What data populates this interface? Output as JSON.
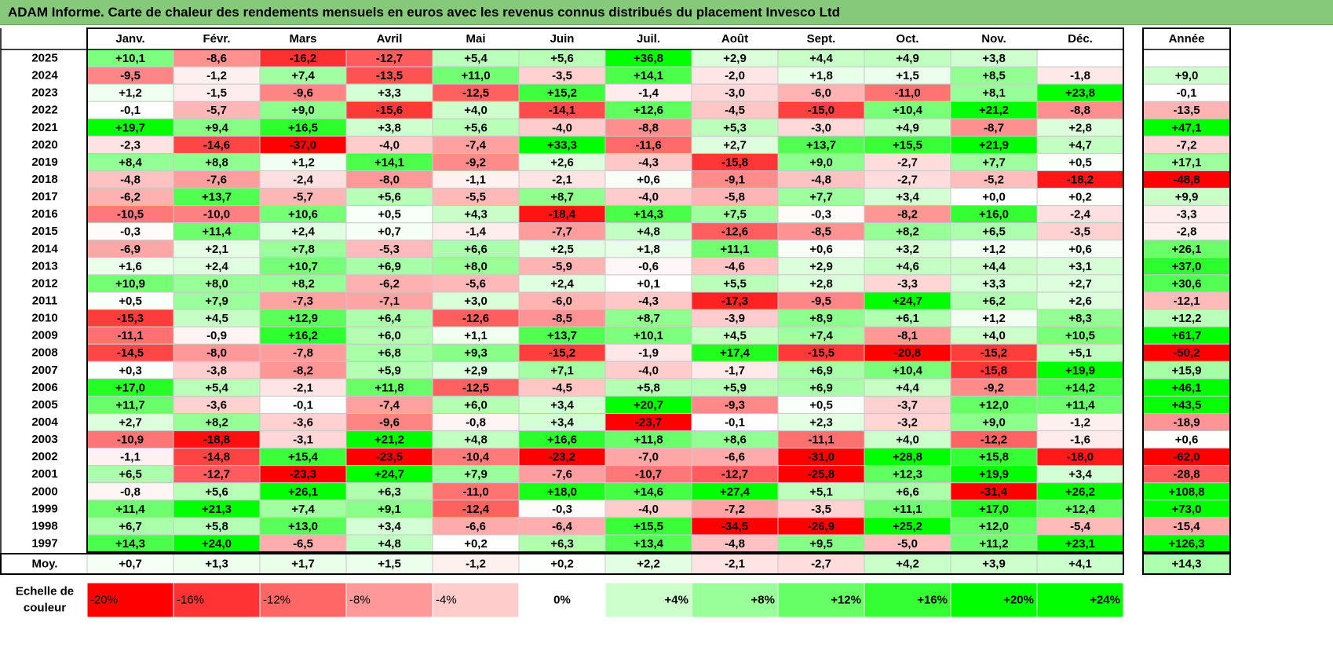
{
  "title": "ADAM Informe. Carte de chaleur des rendements mensuels en euros avec les revenus connus distribués du placement Invesco Ltd",
  "chart_data": {
    "type": "heatmap",
    "months": [
      "Janv.",
      "Févr.",
      "Mars",
      "Avril",
      "Mai",
      "Juin",
      "Juil.",
      "Août",
      "Sept.",
      "Oct.",
      "Nov.",
      "Déc."
    ],
    "year_header": "Année",
    "average_label": "Moy.",
    "rows": [
      {
        "year": "2025",
        "values": [
          "+10,1",
          "-8,6",
          "-16,2",
          "-12,7",
          "+5,4",
          "+5,6",
          "+36,8",
          "+2,9",
          "+4,4",
          "+4,9",
          "+3,8",
          ""
        ],
        "annual": ""
      },
      {
        "year": "2024",
        "values": [
          "-9,5",
          "-1,2",
          "+7,4",
          "-13,5",
          "+11,0",
          "-3,5",
          "+14,1",
          "-2,0",
          "+1,8",
          "+1,5",
          "+8,5",
          "-1,8"
        ],
        "annual": "+9,0"
      },
      {
        "year": "2023",
        "values": [
          "+1,2",
          "-1,5",
          "-9,6",
          "+3,3",
          "-12,5",
          "+15,2",
          "-1,4",
          "-3,0",
          "-6,0",
          "-11,0",
          "+8,1",
          "+23,8"
        ],
        "annual": "-0,1"
      },
      {
        "year": "2022",
        "values": [
          "-0,1",
          "-5,7",
          "+9,0",
          "-15,6",
          "+4,0",
          "-14,1",
          "+12,6",
          "-4,5",
          "-15,0",
          "+10,4",
          "+21,2",
          "-8,8"
        ],
        "annual": "-13,5"
      },
      {
        "year": "2021",
        "values": [
          "+19,7",
          "+9,4",
          "+16,5",
          "+3,8",
          "+5,6",
          "-4,0",
          "-8,8",
          "+5,3",
          "-3,0",
          "+4,9",
          "-8,7",
          "+2,8"
        ],
        "annual": "+47,1"
      },
      {
        "year": "2020",
        "values": [
          "-2,3",
          "-14,6",
          "-37,0",
          "-4,0",
          "-7,4",
          "+33,3",
          "-11,6",
          "+2,7",
          "+13,7",
          "+15,5",
          "+21,9",
          "+4,7"
        ],
        "annual": "-7,2"
      },
      {
        "year": "2019",
        "values": [
          "+8,4",
          "+8,8",
          "+1,2",
          "+14,1",
          "-9,2",
          "+2,6",
          "-4,3",
          "-15,8",
          "+9,0",
          "-2,7",
          "+7,7",
          "+0,5"
        ],
        "annual": "+17,1"
      },
      {
        "year": "2018",
        "values": [
          "-4,8",
          "-7,6",
          "-2,4",
          "-8,0",
          "-1,1",
          "-2,1",
          "+0,6",
          "-9,1",
          "-4,8",
          "-2,7",
          "-5,2",
          "-18,2"
        ],
        "annual": "-48,8"
      },
      {
        "year": "2017",
        "values": [
          "-6,2",
          "+13,7",
          "-5,7",
          "+5,6",
          "-5,5",
          "+8,7",
          "-4,0",
          "-5,8",
          "+7,7",
          "+3,4",
          "+0,0",
          "+0,2"
        ],
        "annual": "+9,9"
      },
      {
        "year": "2016",
        "values": [
          "-10,5",
          "-10,0",
          "+10,6",
          "+0,5",
          "+4,3",
          "-18,4",
          "+14,3",
          "+7,5",
          "-0,3",
          "-8,2",
          "+16,0",
          "-2,4"
        ],
        "annual": "-3,3"
      },
      {
        "year": "2015",
        "values": [
          "-0,3",
          "+11,4",
          "+2,4",
          "+0,7",
          "-1,4",
          "-7,7",
          "+4,8",
          "-12,6",
          "-8,5",
          "+8,2",
          "+6,5",
          "-3,5"
        ],
        "annual": "-2,8"
      },
      {
        "year": "2014",
        "values": [
          "-6,9",
          "+2,1",
          "+7,8",
          "-5,3",
          "+6,6",
          "+2,5",
          "+1,8",
          "+11,1",
          "+0,6",
          "+3,2",
          "+1,2",
          "+0,6"
        ],
        "annual": "+26,1"
      },
      {
        "year": "2013",
        "values": [
          "+1,6",
          "+2,4",
          "+10,7",
          "+6,9",
          "+8,0",
          "-5,9",
          "-0,6",
          "-4,6",
          "+2,9",
          "+4,6",
          "+4,4",
          "+3,1"
        ],
        "annual": "+37,0"
      },
      {
        "year": "2012",
        "values": [
          "+10,9",
          "+8,0",
          "+8,2",
          "-6,2",
          "-5,6",
          "+2,4",
          "+0,1",
          "+5,5",
          "+2,8",
          "-3,3",
          "+3,3",
          "+2,7"
        ],
        "annual": "+30,6"
      },
      {
        "year": "2011",
        "values": [
          "+0,5",
          "+7,9",
          "-7,3",
          "-7,1",
          "+3,0",
          "-6,0",
          "-4,3",
          "-17,3",
          "-9,5",
          "+24,7",
          "+6,2",
          "+2,6"
        ],
        "annual": "-12,1"
      },
      {
        "year": "2010",
        "values": [
          "-15,3",
          "+4,5",
          "+12,9",
          "+6,4",
          "-12,6",
          "-8,5",
          "+8,7",
          "-3,9",
          "+8,9",
          "+6,1",
          "+1,2",
          "+8,3"
        ],
        "annual": "+12,2"
      },
      {
        "year": "2009",
        "values": [
          "-11,1",
          "-0,9",
          "+16,2",
          "+6,0",
          "+1,1",
          "+13,7",
          "+10,1",
          "+4,5",
          "+7,4",
          "-8,1",
          "+4,0",
          "+10,5"
        ],
        "annual": "+61,7"
      },
      {
        "year": "2008",
        "values": [
          "-14,5",
          "-8,0",
          "-7,8",
          "+6,8",
          "+9,3",
          "-15,2",
          "-1,9",
          "+17,4",
          "-15,5",
          "-20,8",
          "-15,2",
          "+5,1"
        ],
        "annual": "-50,2"
      },
      {
        "year": "2007",
        "values": [
          "+0,3",
          "-3,8",
          "-8,2",
          "+5,9",
          "+2,9",
          "+7,1",
          "-4,0",
          "-1,7",
          "+6,9",
          "+10,4",
          "-15,8",
          "+19,9"
        ],
        "annual": "+15,9"
      },
      {
        "year": "2006",
        "values": [
          "+17,0",
          "+5,4",
          "-2,1",
          "+11,8",
          "-12,5",
          "-4,5",
          "+5,8",
          "+5,9",
          "+6,9",
          "+4,4",
          "-9,2",
          "+14,2"
        ],
        "annual": "+46,1"
      },
      {
        "year": "2005",
        "values": [
          "+11,7",
          "-3,6",
          "-0,1",
          "-7,4",
          "+6,0",
          "+3,4",
          "+20,7",
          "-9,3",
          "+0,5",
          "-3,7",
          "+12,0",
          "+11,4"
        ],
        "annual": "+43,5"
      },
      {
        "year": "2004",
        "values": [
          "+2,7",
          "+8,2",
          "-3,6",
          "-9,6",
          "-0,8",
          "+3,4",
          "-23,7",
          "-0,1",
          "+2,3",
          "-3,2",
          "+9,0",
          "-1,2"
        ],
        "annual": "-18,9"
      },
      {
        "year": "2003",
        "values": [
          "-10,9",
          "-18,8",
          "-3,1",
          "+21,2",
          "+4,8",
          "+16,6",
          "+11,8",
          "+8,6",
          "-11,1",
          "+4,0",
          "-12,2",
          "-1,6"
        ],
        "annual": "+0,6"
      },
      {
        "year": "2002",
        "values": [
          "-1,1",
          "-14,8",
          "+15,4",
          "-23,5",
          "-10,4",
          "-23,2",
          "-7,0",
          "-6,6",
          "-31,0",
          "+28,8",
          "+15,8",
          "-18,0"
        ],
        "annual": "-62,0"
      },
      {
        "year": "2001",
        "values": [
          "+6,5",
          "-12,7",
          "-23,3",
          "+24,7",
          "+7,9",
          "-7,6",
          "-10,7",
          "-12,7",
          "-25,8",
          "+12,3",
          "+19,9",
          "+3,4"
        ],
        "annual": "-28,8"
      },
      {
        "year": "2000",
        "values": [
          "-0,8",
          "+5,6",
          "+26,1",
          "+6,3",
          "-11,0",
          "+18,0",
          "+14,6",
          "+27,4",
          "+5,1",
          "+6,6",
          "-31,4",
          "+26,2"
        ],
        "annual": "+108,8"
      },
      {
        "year": "1999",
        "values": [
          "+11,4",
          "+21,3",
          "+7,4",
          "+9,1",
          "-12,4",
          "-0,3",
          "-4,0",
          "-7,2",
          "-3,5",
          "+11,1",
          "+17,0",
          "+12,4"
        ],
        "annual": "+73,0"
      },
      {
        "year": "1998",
        "values": [
          "+6,7",
          "+5,8",
          "+13,0",
          "+3,4",
          "-6,6",
          "-6,4",
          "+15,5",
          "-34,5",
          "-26,9",
          "+25,2",
          "+12,0",
          "-5,4"
        ],
        "annual": "-15,4"
      },
      {
        "year": "1997",
        "values": [
          "+14,3",
          "+24,0",
          "-6,5",
          "+4,8",
          "+0,2",
          "+6,3",
          "+13,4",
          "-4,8",
          "+9,5",
          "-5,0",
          "+11,2",
          "+23,1"
        ],
        "annual": "+126,3"
      }
    ],
    "averages": [
      "+0,7",
      "+1,3",
      "+1,7",
      "+1,5",
      "-1,2",
      "+0,2",
      "+2,2",
      "-2,1",
      "-2,7",
      "+4,2",
      "+3,9",
      "+4,1"
    ],
    "average_annual": "+14,3",
    "scale_label": "Echelle de couleur",
    "scale": [
      "-20%",
      "-16%",
      "-12%",
      "-8%",
      "-4%",
      "0%",
      "+4%",
      "+8%",
      "+12%",
      "+16%",
      "+20%",
      "+24%"
    ],
    "scale_values": [
      -20,
      -16,
      -12,
      -8,
      -4,
      0,
      4,
      8,
      12,
      16,
      20,
      24
    ],
    "colors": {
      "strong_negative": "#ff0000",
      "neutral": "#ffffff",
      "strong_positive": "#00ff00",
      "title_background": "#86c97b"
    }
  }
}
